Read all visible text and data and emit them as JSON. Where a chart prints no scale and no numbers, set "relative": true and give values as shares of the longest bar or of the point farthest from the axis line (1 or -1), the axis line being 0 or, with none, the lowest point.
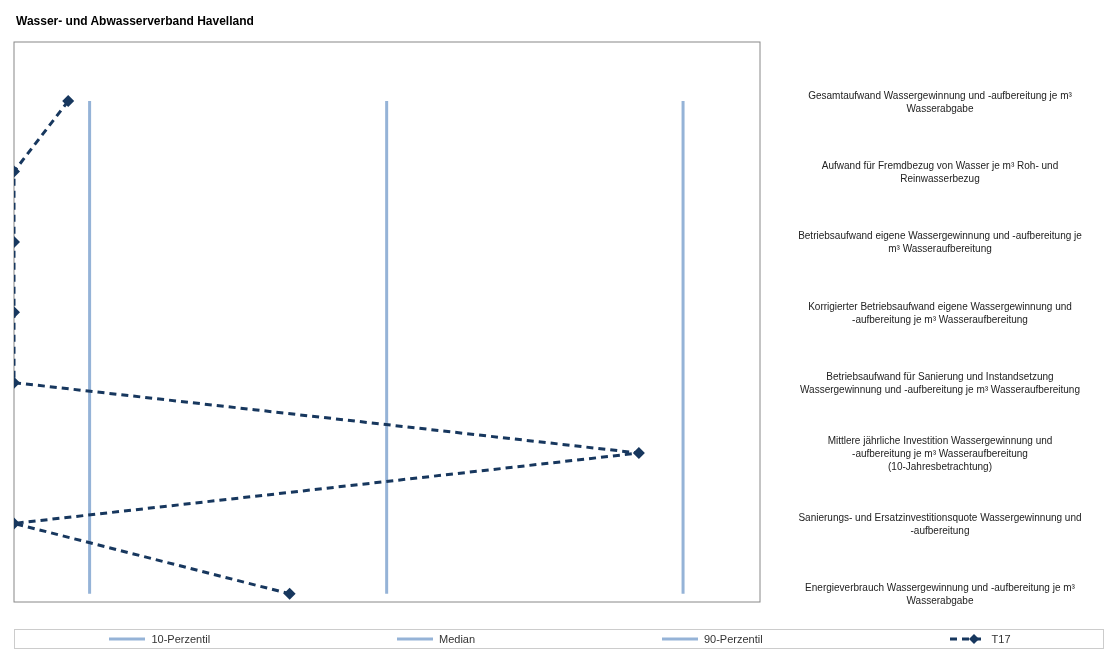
{
  "chart_data": {
    "type": "line",
    "title": "Wasser- und Abwasserverband Havelland",
    "orientation": "horizontal",
    "relative": true,
    "legend": "bottom",
    "categories": [
      "Gesamtaufwand Wassergewinnung und -aufbereitung je m³ Wasserabgabe",
      "Aufwand für Fremdbezug von Wasser je m³ Roh- und Reinwasserbezug",
      "Betriebsaufwand eigene Wassergewinnung und -aufbereitung je m³ Wasseraufbereitung",
      "Korrigierter Betriebsaufwand eigene Wassergewinnung und -aufbereitung je m³ Wasseraufbereitung",
      "Betriebsaufwand für Sanierung und Instandsetzung Wassergewinnung und -aufbereitung je m³ Wasseraufbereitung",
      "Mittlere jährliche Investition Wassergewinnung und -aufbereitung je m³ Wasseraufbereitung (10-Jahresbetrachtung)",
      "Sanierungs- und Ersatzinvestitionsquote Wassergewinnung und -aufbereitung",
      "Energieverbrauch Wassergewinnung und -aufbereitung je m³ Wasserabgabe"
    ],
    "series": [
      {
        "name": "10-Perzentil",
        "color": "#95b3d7",
        "marker": "none",
        "line_style": "solid",
        "values": [
          0.113,
          0.113,
          0.113,
          0.113,
          0.113,
          0.113,
          0.113,
          0.113
        ]
      },
      {
        "name": "Median",
        "color": "#95b3d7",
        "marker": "none",
        "line_style": "solid",
        "values": [
          0.557,
          0.557,
          0.557,
          0.557,
          0.557,
          0.557,
          0.557,
          0.557
        ]
      },
      {
        "name": "90-Perzentil",
        "color": "#95b3d7",
        "marker": "none",
        "line_style": "solid",
        "values": [
          1,
          1,
          1,
          1,
          1,
          1,
          1,
          1
        ]
      },
      {
        "name": "T17",
        "color": "#17375e",
        "marker": "diamond",
        "line_style": "dashed",
        "values": [
          0.081,
          0,
          0,
          0,
          0,
          0.934,
          0,
          0.412
        ]
      }
    ]
  }
}
